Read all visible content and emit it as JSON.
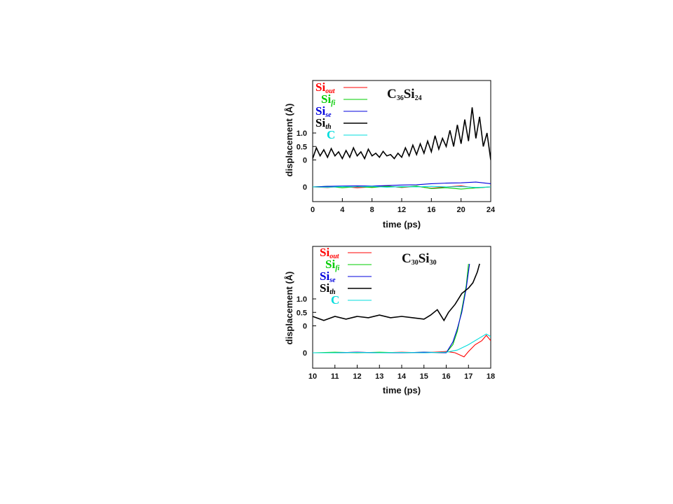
{
  "chart_data": [
    {
      "type": "line",
      "title": {
        "base": "C",
        "sub1": "36",
        "mid": "Si",
        "sub2": "24"
      },
      "xlabel": "time (ps)",
      "ylabel": "displacement (Å)",
      "xlim": [
        0,
        24
      ],
      "x_ticks": [
        "0",
        "4",
        "8",
        "12",
        "16",
        "20",
        "24"
      ],
      "y_ticks": [
        {
          "v": 1.0,
          "label": "1.0"
        },
        {
          "v": 0.5,
          "label": "0.5"
        },
        {
          "v": 0.0,
          "label": "0"
        },
        {
          "v": -1.0,
          "label": "0"
        }
      ],
      "legend_position": "top-left",
      "series": [
        {
          "name": "Si",
          "sub": "out",
          "color": "#ff0000",
          "points": [
            [
              0,
              -1.0
            ],
            [
              2,
              -1.02
            ],
            [
              4,
              -0.98
            ],
            [
              6,
              -1.03
            ],
            [
              8,
              -1.0
            ],
            [
              10,
              -0.97
            ],
            [
              12,
              -1.02
            ],
            [
              14,
              -0.98
            ],
            [
              16,
              -1.05
            ],
            [
              18,
              -1.0
            ],
            [
              20,
              -0.96
            ],
            [
              22,
              -1.04
            ],
            [
              24,
              -1.0
            ]
          ]
        },
        {
          "name": "Si",
          "sub": "fi",
          "color": "#00cc00",
          "points": [
            [
              0,
              -1.0
            ],
            [
              2,
              -0.98
            ],
            [
              4,
              -1.03
            ],
            [
              6,
              -0.99
            ],
            [
              8,
              -1.02
            ],
            [
              10,
              -0.98
            ],
            [
              12,
              -1.01
            ],
            [
              14,
              -0.97
            ],
            [
              16,
              -1.06
            ],
            [
              18,
              -1.03
            ],
            [
              20,
              -1.08
            ],
            [
              22,
              -1.04
            ],
            [
              24,
              -1.0
            ]
          ]
        },
        {
          "name": "Si",
          "sub": "se",
          "color": "#0000dd",
          "points": [
            [
              0,
              -1.0
            ],
            [
              2,
              -0.98
            ],
            [
              4,
              -0.97
            ],
            [
              6,
              -0.96
            ],
            [
              8,
              -0.97
            ],
            [
              10,
              -0.95
            ],
            [
              12,
              -0.93
            ],
            [
              14,
              -0.92
            ],
            [
              16,
              -0.88
            ],
            [
              18,
              -0.86
            ],
            [
              20,
              -0.85
            ],
            [
              22,
              -0.82
            ],
            [
              24,
              -0.88
            ]
          ]
        },
        {
          "name": "Si",
          "sub": "th",
          "color": "#000000",
          "points": [
            [
              0,
              0.05
            ],
            [
              0.5,
              0.45
            ],
            [
              1,
              0.15
            ],
            [
              1.5,
              0.38
            ],
            [
              2,
              0.1
            ],
            [
              2.5,
              0.42
            ],
            [
              3,
              0.15
            ],
            [
              3.5,
              0.3
            ],
            [
              4,
              0.05
            ],
            [
              4.5,
              0.35
            ],
            [
              5,
              0.1
            ],
            [
              5.5,
              0.45
            ],
            [
              6,
              0.15
            ],
            [
              6.5,
              0.3
            ],
            [
              7,
              0.05
            ],
            [
              7.5,
              0.4
            ],
            [
              8,
              0.15
            ],
            [
              8.5,
              0.25
            ],
            [
              9,
              0.1
            ],
            [
              9.5,
              0.32
            ],
            [
              10,
              0.15
            ],
            [
              10.5,
              0.2
            ],
            [
              11,
              0.05
            ],
            [
              11.5,
              0.25
            ],
            [
              12,
              0.1
            ],
            [
              12.5,
              0.45
            ],
            [
              13,
              0.15
            ],
            [
              13.5,
              0.55
            ],
            [
              14,
              0.2
            ],
            [
              14.5,
              0.6
            ],
            [
              15,
              0.25
            ],
            [
              15.5,
              0.7
            ],
            [
              16,
              0.3
            ],
            [
              16.5,
              0.9
            ],
            [
              17,
              0.4
            ],
            [
              17.5,
              0.8
            ],
            [
              18,
              0.5
            ],
            [
              18.5,
              1.1
            ],
            [
              19,
              0.5
            ],
            [
              19.5,
              1.3
            ],
            [
              20,
              0.6
            ],
            [
              20.5,
              1.5
            ],
            [
              21,
              0.7
            ],
            [
              21.5,
              1.95
            ],
            [
              22,
              0.8
            ],
            [
              22.5,
              1.6
            ],
            [
              23,
              0.5
            ],
            [
              23.5,
              1.0
            ],
            [
              24,
              0.0
            ]
          ]
        },
        {
          "name": "C",
          "sub": "",
          "color": "#00dddd",
          "points": [
            [
              0,
              -1.0
            ],
            [
              2,
              -1.01
            ],
            [
              4,
              -0.99
            ],
            [
              6,
              -1.0
            ],
            [
              8,
              -0.98
            ],
            [
              10,
              -1.01
            ],
            [
              12,
              -0.99
            ],
            [
              14,
              -1.0
            ],
            [
              16,
              -0.98
            ],
            [
              18,
              -1.0
            ],
            [
              20,
              -0.99
            ],
            [
              22,
              -1.02
            ],
            [
              24,
              -1.0
            ]
          ]
        }
      ]
    },
    {
      "type": "line",
      "title": {
        "base": "C",
        "sub1": "30",
        "mid": "Si",
        "sub2": "30"
      },
      "xlabel": "time (ps)",
      "ylabel": "displacement (Å)",
      "xlim": [
        10,
        18
      ],
      "x_ticks": [
        "10",
        "11",
        "12",
        "13",
        "14",
        "15",
        "16",
        "17",
        "18"
      ],
      "y_ticks": [
        {
          "v": 1.0,
          "label": "1.0"
        },
        {
          "v": 0.5,
          "label": "0.5"
        },
        {
          "v": 0.0,
          "label": "0"
        },
        {
          "v": -1.0,
          "label": "0"
        }
      ],
      "legend_position": "top-left",
      "series": [
        {
          "name": "Si",
          "sub": "out",
          "color": "#ff0000",
          "points": [
            [
              10,
              -1.0
            ],
            [
              11,
              -1.0
            ],
            [
              12,
              -0.98
            ],
            [
              13,
              -1.0
            ],
            [
              14,
              -0.98
            ],
            [
              15,
              -1.0
            ],
            [
              16,
              -0.95
            ],
            [
              16.4,
              -1.0
            ],
            [
              16.8,
              -1.15
            ],
            [
              17.0,
              -0.95
            ],
            [
              17.3,
              -0.7
            ],
            [
              17.6,
              -0.55
            ],
            [
              17.8,
              -0.35
            ],
            [
              18,
              -0.55
            ]
          ]
        },
        {
          "name": "Si",
          "sub": "fi",
          "color": "#00cc00",
          "points": [
            [
              10,
              -1.0
            ],
            [
              11,
              -0.98
            ],
            [
              12,
              -1.0
            ],
            [
              13,
              -0.98
            ],
            [
              14,
              -1.0
            ],
            [
              15,
              -0.98
            ],
            [
              16,
              -1.0
            ],
            [
              16.3,
              -0.7
            ],
            [
              16.5,
              -0.2
            ],
            [
              16.7,
              0.6
            ],
            [
              16.9,
              1.5
            ],
            [
              17.0,
              2.3
            ]
          ]
        },
        {
          "name": "Si",
          "sub": "se",
          "color": "#0000dd",
          "points": [
            [
              10,
              -1.0
            ],
            [
              11,
              -1.0
            ],
            [
              12,
              -0.98
            ],
            [
              13,
              -1.0
            ],
            [
              14,
              -1.0
            ],
            [
              15,
              -0.98
            ],
            [
              16,
              -1.0
            ],
            [
              16.3,
              -0.6
            ],
            [
              16.5,
              -0.1
            ],
            [
              16.7,
              0.5
            ],
            [
              16.9,
              1.4
            ],
            [
              17.05,
              2.3
            ]
          ]
        },
        {
          "name": "Si",
          "sub": "th",
          "color": "#000000",
          "points": [
            [
              10,
              0.35
            ],
            [
              10.5,
              0.2
            ],
            [
              11,
              0.35
            ],
            [
              11.5,
              0.25
            ],
            [
              12,
              0.35
            ],
            [
              12.5,
              0.3
            ],
            [
              13,
              0.4
            ],
            [
              13.5,
              0.3
            ],
            [
              14,
              0.35
            ],
            [
              14.5,
              0.3
            ],
            [
              15,
              0.25
            ],
            [
              15.3,
              0.4
            ],
            [
              15.6,
              0.6
            ],
            [
              15.9,
              0.2
            ],
            [
              16.1,
              0.5
            ],
            [
              16.4,
              0.8
            ],
            [
              16.7,
              1.2
            ],
            [
              17.0,
              1.4
            ],
            [
              17.2,
              1.6
            ],
            [
              17.4,
              2.0
            ],
            [
              17.5,
              2.3
            ]
          ]
        },
        {
          "name": "C",
          "sub": "",
          "color": "#00dddd",
          "points": [
            [
              10,
              -1.0
            ],
            [
              11,
              -1.0
            ],
            [
              12,
              -0.99
            ],
            [
              13,
              -1.0
            ],
            [
              14,
              -0.99
            ],
            [
              15,
              -1.0
            ],
            [
              16,
              -0.98
            ],
            [
              16.5,
              -0.9
            ],
            [
              17,
              -0.7
            ],
            [
              17.5,
              -0.45
            ],
            [
              17.8,
              -0.3
            ],
            [
              18,
              -0.4
            ]
          ]
        }
      ]
    }
  ]
}
